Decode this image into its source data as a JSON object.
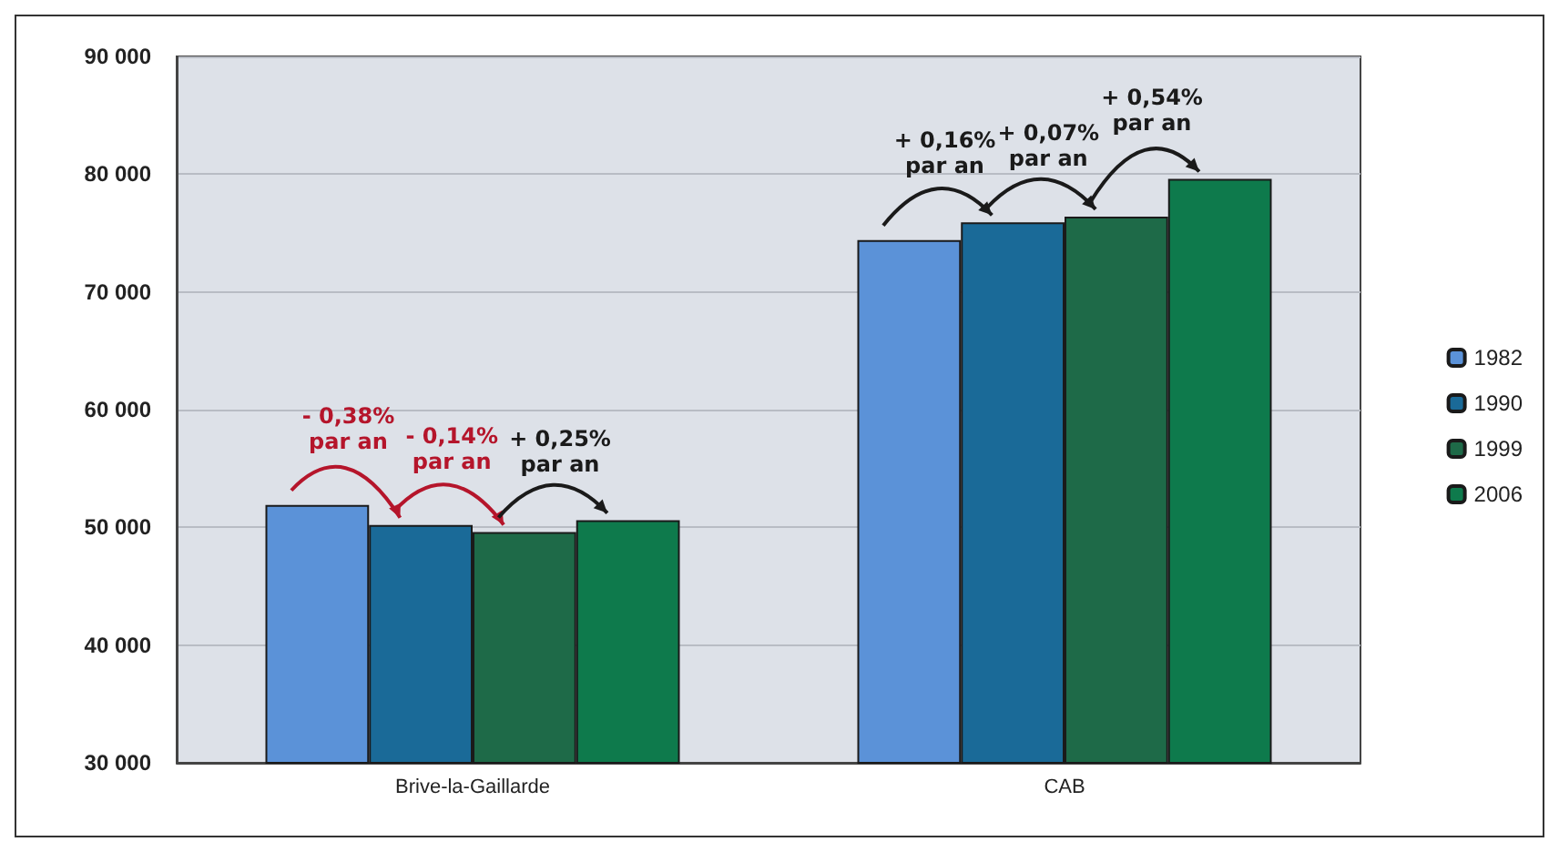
{
  "chart_data": {
    "type": "bar",
    "categories": [
      "Brive-la-Gaillarde",
      "CAB"
    ],
    "series": [
      {
        "name": "1982",
        "color": "#5b92d8",
        "values": [
          51900,
          74400
        ]
      },
      {
        "name": "1990",
        "color": "#1a6a98",
        "values": [
          50200,
          75900
        ]
      },
      {
        "name": "1999",
        "color": "#1e6a48",
        "values": [
          49600,
          76400
        ]
      },
      {
        "name": "2006",
        "color": "#0e7a4c",
        "values": [
          50600,
          79600
        ]
      }
    ],
    "ylim": [
      30000,
      90000
    ],
    "yticks": [
      {
        "value": 30000,
        "label": "30 000"
      },
      {
        "value": 40000,
        "label": "40 000"
      },
      {
        "value": 50000,
        "label": "50 000"
      },
      {
        "value": 60000,
        "label": "60 000"
      },
      {
        "value": 70000,
        "label": "70 000"
      },
      {
        "value": 80000,
        "label": "80 000"
      },
      {
        "value": 90000,
        "label": "90 000"
      }
    ],
    "grid": "y",
    "legend": "right",
    "annotations": [
      "- 0,38%\npar an",
      "- 0,14%\npar an",
      "+ 0,25%\npar an",
      "+ 0,16%\npar an",
      "+ 0,07%\npar an",
      "+ 0,54%\npar an"
    ]
  }
}
